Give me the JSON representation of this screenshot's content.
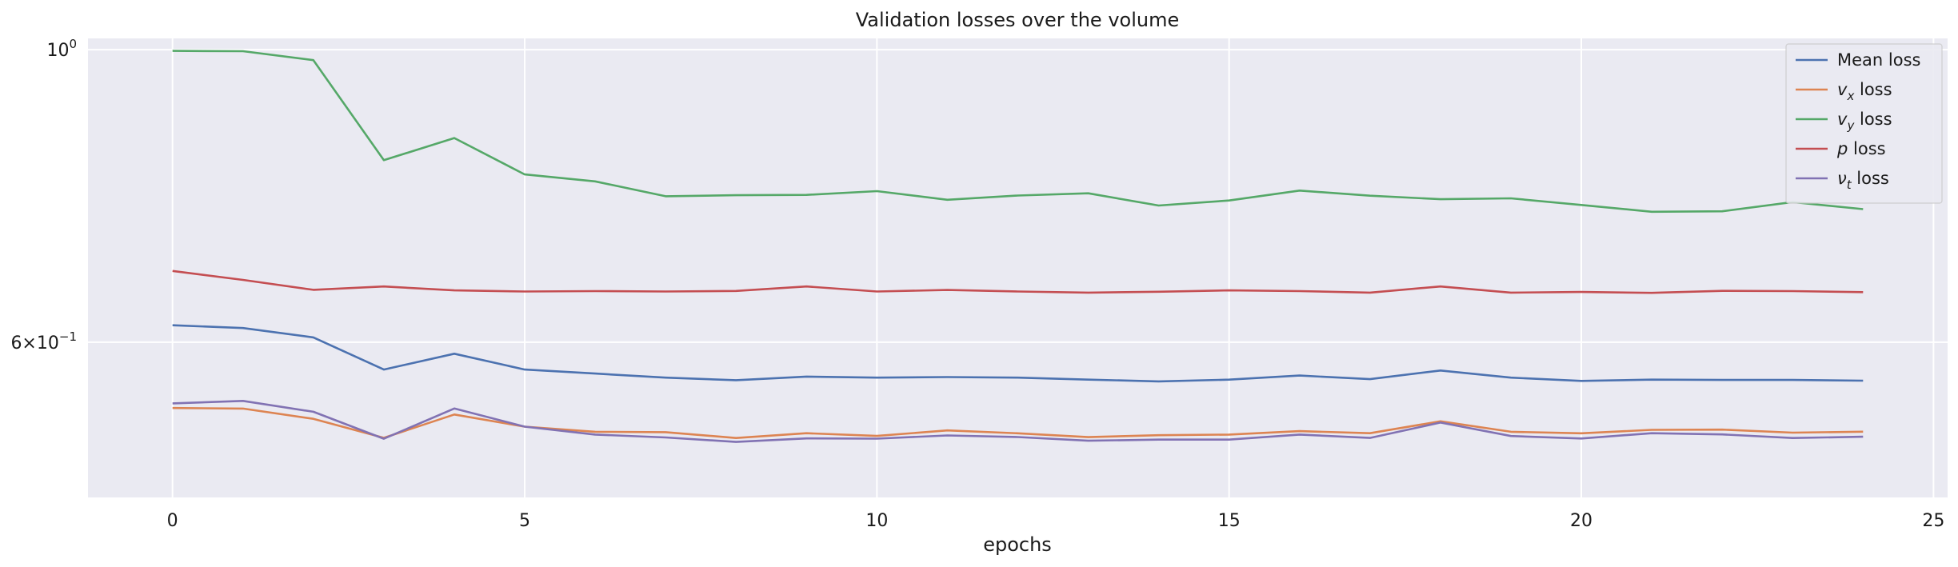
{
  "chart_data": {
    "type": "line",
    "title": "Validation losses over the volume",
    "xlabel": "epochs",
    "ylabel": "",
    "yscale": "log",
    "xlim": [
      -1.2,
      25.2
    ],
    "ylim": [
      0.4575,
      1.02
    ],
    "grid": true,
    "legend_position": "top-right",
    "x": [
      0,
      1,
      2,
      3,
      4,
      5,
      6,
      7,
      8,
      9,
      10,
      11,
      12,
      13,
      14,
      15,
      16,
      17,
      18,
      19,
      20,
      21,
      22,
      23,
      24
    ],
    "x_ticks": [
      0,
      5,
      10,
      15,
      20,
      25
    ],
    "x_tick_labels": [
      "0",
      "5",
      "10",
      "15",
      "20",
      "25"
    ],
    "y_ticks": [
      {
        "value": 1.0,
        "base": "10",
        "exp": "0"
      },
      {
        "value": 0.6,
        "base": "6×10",
        "exp": "−1"
      }
    ],
    "series": [
      {
        "name": "Mean loss",
        "label_main": "Mean loss",
        "label_sub": "",
        "label_suffix": "",
        "color": "#4c72b0",
        "values": [
          0.618,
          0.615,
          0.605,
          0.572,
          0.588,
          0.572,
          0.568,
          0.564,
          0.5615,
          0.565,
          0.564,
          0.5645,
          0.564,
          0.562,
          0.5603,
          0.562,
          0.566,
          0.5625,
          0.571,
          0.564,
          0.5608,
          0.562,
          0.5617,
          0.5617,
          0.561
        ]
      },
      {
        "name": "v_x loss",
        "label_main": "v",
        "label_sub": "x",
        "label_suffix": " loss",
        "color": "#dd8452",
        "values": [
          0.5348,
          0.5343,
          0.5248,
          0.5077,
          0.5288,
          0.5177,
          0.5131,
          0.5127,
          0.5075,
          0.5118,
          0.5094,
          0.5143,
          0.5117,
          0.5083,
          0.51,
          0.5106,
          0.5137,
          0.5118,
          0.5226,
          0.5131,
          0.5117,
          0.5148,
          0.515,
          0.5123,
          0.5132
        ]
      },
      {
        "name": "v_y loss",
        "label_main": "v",
        "label_sub": "y",
        "label_suffix": " loss",
        "color": "#55a868",
        "values": [
          0.998,
          0.9975,
          0.982,
          0.8245,
          0.8571,
          0.8043,
          0.7946,
          0.7742,
          0.7756,
          0.776,
          0.7811,
          0.7694,
          0.7752,
          0.7782,
          0.7618,
          0.7685,
          0.7819,
          0.775,
          0.7702,
          0.7714,
          0.7625,
          0.7535,
          0.7541,
          0.7663,
          0.757
        ]
      },
      {
        "name": "p loss",
        "label_main": "p",
        "label_sub": "",
        "label_suffix": " loss",
        "color": "#c44e52",
        "values": [
          0.6795,
          0.669,
          0.6575,
          0.6613,
          0.6568,
          0.6555,
          0.656,
          0.6555,
          0.6562,
          0.6613,
          0.6555,
          0.6573,
          0.6555,
          0.6543,
          0.6553,
          0.6568,
          0.656,
          0.6543,
          0.6613,
          0.6543,
          0.655,
          0.654,
          0.6563,
          0.656,
          0.6548
        ]
      },
      {
        "name": "v_t loss",
        "label_main": "ν",
        "label_sub": "t",
        "label_suffix": " loss",
        "color": "#8172b3",
        "values": [
          0.5392,
          0.5415,
          0.5313,
          0.5069,
          0.5344,
          0.5177,
          0.5106,
          0.508,
          0.5041,
          0.5072,
          0.507,
          0.5098,
          0.5084,
          0.5051,
          0.5061,
          0.5061,
          0.5106,
          0.5076,
          0.5214,
          0.5093,
          0.5071,
          0.5118,
          0.5107,
          0.5075,
          0.5087
        ]
      }
    ]
  }
}
